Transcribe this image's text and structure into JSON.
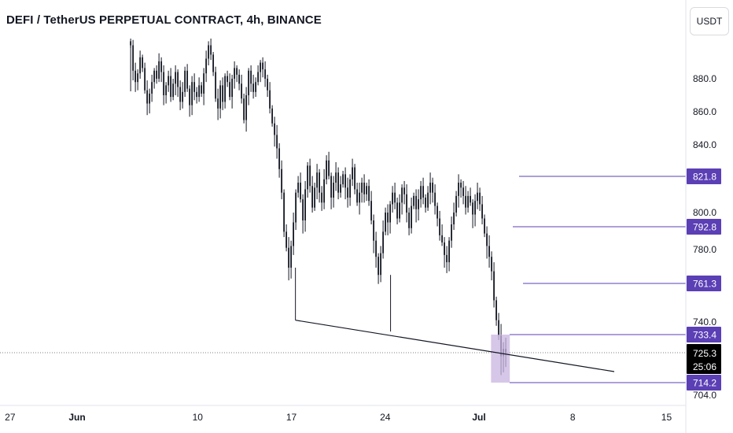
{
  "header": {
    "title": "DEFI / TetherUS PERPETUAL CONTRACT, 4h, BINANCE",
    "currency": "USDT"
  },
  "colors": {
    "candle": "#131722",
    "level_line": "#5b3fb5",
    "badge": "#5b3fb5",
    "current_badge": "#000000",
    "zone_fill": "#c8b4e0",
    "trendline": "#131722",
    "axis_text": "#131722"
  },
  "chart_data": {
    "type": "candlestick",
    "title": "DEFI / TetherUS PERPETUAL CONTRACT, 4h, BINANCE",
    "xlabel": "",
    "ylabel": "",
    "y_range": [
      700,
      912
    ],
    "y_ticks": [
      880.0,
      860.0,
      840.0,
      820.0,
      800.0,
      780.0,
      740.0,
      704.0
    ],
    "y_tick_labels": [
      "880.0",
      "860.0",
      "840.0",
      "820.0",
      "800.0",
      "780.0",
      "740.0",
      "704.0"
    ],
    "x_range": [
      26.6,
      46.9
    ],
    "x_ticks": [
      {
        "day": 27,
        "label": "27",
        "bold": false
      },
      {
        "day": 32,
        "label": "Jun",
        "bold": true
      },
      {
        "day": 41,
        "label": "10",
        "bold": false
      },
      {
        "day": 48,
        "label": "17",
        "bold": false
      },
      {
        "day": 55,
        "label": "24",
        "bold": false
      },
      {
        "day": 62,
        "label": "Jul",
        "bold": true
      },
      {
        "day": 69,
        "label": "8",
        "bold": false
      },
      {
        "day": 76,
        "label": "15",
        "bold": false
      }
    ],
    "price_levels": [
      821.8,
      792.8,
      761.3,
      733.4,
      714.2
    ],
    "price_level_labels": [
      "821.8",
      "792.8",
      "761.3",
      "733.4",
      "714.2"
    ],
    "current_price": 725.3,
    "current_price_label": "725.3",
    "countdown": "25:06",
    "accumulation_zone": {
      "top": 733.4,
      "bottom": 714.2,
      "day_start": 62.9,
      "day_end": 64.3
    },
    "trendline": {
      "start": {
        "day": 48.3,
        "price": 741.0
      },
      "end": {
        "day": 66.5,
        "price": 716.0
      }
    },
    "candles_close": [
      905,
      886,
      878,
      884,
      896,
      888,
      873,
      865,
      871,
      878,
      886,
      880,
      893,
      885,
      870,
      876,
      882,
      869,
      877,
      885,
      875,
      866,
      872,
      886,
      874,
      864,
      878,
      872,
      869,
      876,
      871,
      884,
      895,
      905,
      898,
      885,
      868,
      862,
      876,
      866,
      882,
      878,
      869,
      880,
      888,
      883,
      877,
      868,
      855,
      870,
      886,
      877,
      872,
      878,
      885,
      892,
      887,
      880,
      873,
      862,
      853,
      846,
      838,
      826,
      812,
      790,
      781,
      770,
      782,
      795,
      812,
      818,
      808,
      796,
      814,
      828,
      816,
      803,
      815,
      824,
      812,
      806,
      820,
      831,
      822,
      809,
      818,
      824,
      812,
      817,
      823,
      815,
      809,
      820,
      827,
      814,
      806,
      812,
      818,
      811,
      816,
      807,
      796,
      785,
      776,
      766,
      778,
      790,
      800,
      795,
      805,
      812,
      806,
      797,
      806,
      815,
      811,
      800,
      792,
      804,
      810,
      802,
      808,
      816,
      809,
      803,
      812,
      818,
      812,
      804,
      797,
      788,
      784,
      777,
      773,
      785,
      794,
      800,
      810,
      818,
      815,
      810,
      803,
      810,
      806,
      799,
      807,
      812,
      805,
      797,
      789,
      782,
      776,
      768,
      752,
      741,
      733,
      724,
      727,
      725
    ]
  }
}
